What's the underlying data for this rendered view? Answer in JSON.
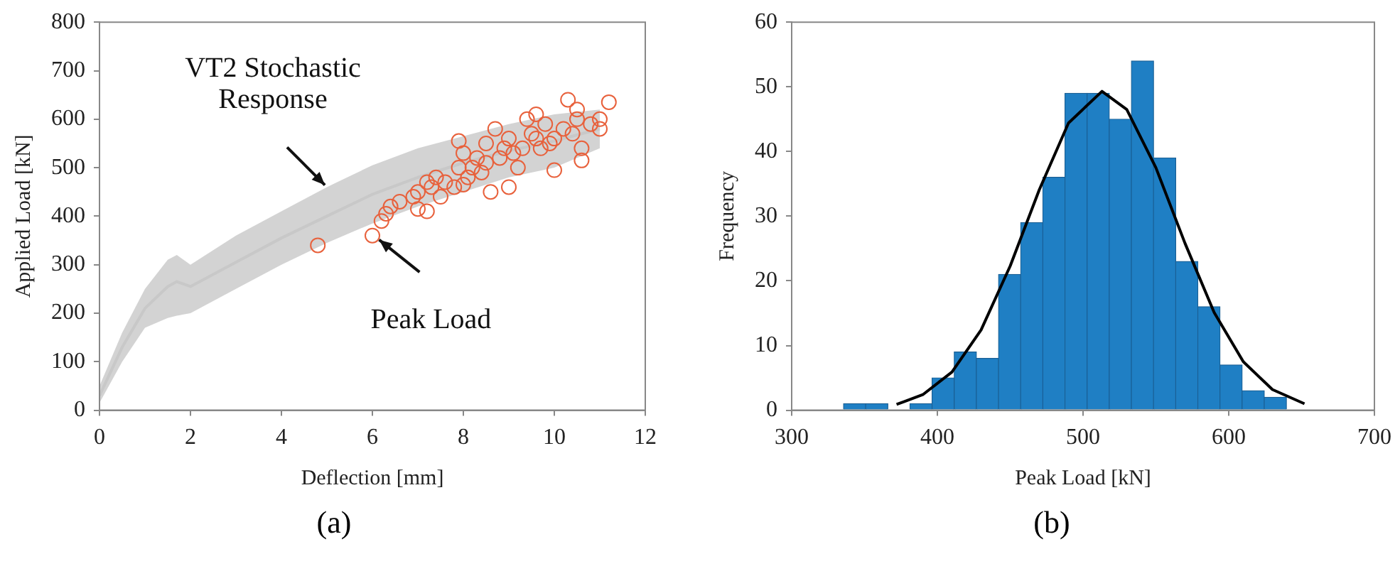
{
  "chart_data": [
    {
      "type": "scatter",
      "xlabel": "Deflection [mm]",
      "ylabel": "Applied Load [kN]",
      "xlim": [
        0,
        12
      ],
      "ylim": [
        0,
        800
      ],
      "xticks": [
        0,
        2,
        4,
        6,
        8,
        10,
        12
      ],
      "yticks": [
        0,
        100,
        200,
        300,
        400,
        500,
        600,
        700,
        800
      ],
      "grid": false,
      "legend": false,
      "series": [
        {
          "type": "line",
          "color": "#c8c8c8",
          "marker": "none",
          "x": [
            0,
            0.5,
            1,
            1.5,
            1.7,
            2,
            3,
            4,
            5,
            6,
            7,
            8,
            9,
            10,
            11
          ],
          "values": [
            30,
            130,
            210,
            255,
            265,
            255,
            305,
            355,
            400,
            445,
            480,
            510,
            535,
            555,
            580
          ],
          "lower": [
            15,
            100,
            170,
            190,
            195,
            200,
            250,
            300,
            345,
            385,
            420,
            450,
            480,
            500,
            540
          ],
          "upper": [
            50,
            160,
            250,
            310,
            320,
            300,
            360,
            410,
            460,
            505,
            540,
            565,
            590,
            610,
            620
          ]
        },
        {
          "type": "scatter",
          "color": "#e8613c",
          "marker": "circle",
          "x": [
            4.8,
            6.0,
            6.2,
            6.3,
            6.4,
            6.6,
            6.9,
            7.0,
            7.0,
            7.2,
            7.2,
            7.3,
            7.4,
            7.5,
            7.6,
            7.8,
            7.9,
            7.9,
            8.0,
            8.0,
            8.1,
            8.2,
            8.3,
            8.4,
            8.5,
            8.5,
            8.6,
            8.7,
            8.8,
            8.9,
            9.0,
            9.0,
            9.1,
            9.2,
            9.3,
            9.4,
            9.5,
            9.6,
            9.6,
            9.7,
            9.8,
            9.9,
            10.0,
            10.0,
            10.2,
            10.3,
            10.4,
            10.5,
            10.5,
            10.6,
            10.6,
            10.8,
            11.0,
            11.0,
            11.2
          ],
          "values": [
            340,
            360,
            390,
            405,
            420,
            430,
            440,
            415,
            450,
            410,
            470,
            460,
            480,
            440,
            470,
            460,
            500,
            555,
            530,
            465,
            480,
            500,
            520,
            490,
            550,
            510,
            450,
            580,
            520,
            540,
            460,
            560,
            530,
            500,
            540,
            600,
            570,
            610,
            560,
            540,
            590,
            550,
            495,
            560,
            580,
            640,
            570,
            620,
            600,
            515,
            540,
            590,
            600,
            580,
            635
          ]
        }
      ],
      "annotations": [
        {
          "text": "VT2 Stochastic Response",
          "x": 5.0,
          "y": 460
        },
        {
          "text": "Peak Load",
          "x": 6.1,
          "y": 355
        },
        "(a)"
      ]
    },
    {
      "type": "histogram",
      "xlabel": "Peak Load [kN]",
      "ylabel": "Frequency",
      "xlim": [
        300,
        700
      ],
      "ylim": [
        0,
        60
      ],
      "xticks": [
        300,
        400,
        500,
        600,
        700
      ],
      "yticks": [
        0,
        10,
        20,
        30,
        40,
        50,
        60
      ],
      "grid": false,
      "legend": false,
      "color": "#1f7fc4",
      "bins": [
        335.6,
        350.8,
        366,
        381.2,
        396.4,
        411.6,
        426.8,
        442,
        457.2,
        472.4,
        487.6,
        502.8,
        518,
        533.2,
        548.4,
        563.6,
        578.8,
        594,
        609.2,
        624.4,
        639.6
      ],
      "values": [
        1,
        1,
        0,
        1,
        5,
        9,
        8,
        21,
        29,
        36,
        49,
        49,
        45,
        54,
        39,
        23,
        16,
        7,
        3,
        2
      ],
      "series": [
        {
          "type": "line",
          "color": "#000000",
          "marker": "none",
          "x": [
            372,
            390,
            410,
            430,
            450,
            470,
            490,
            513,
            530,
            550,
            570,
            590,
            610,
            630,
            652
          ],
          "values": [
            0.9,
            2.4,
            5.9,
            12.4,
            22.3,
            34.1,
            44.4,
            49.3,
            46.5,
            37.5,
            25.8,
            15.1,
            7.5,
            3.2,
            1.0
          ]
        }
      ],
      "annotations": [
        "(b)"
      ]
    }
  ]
}
